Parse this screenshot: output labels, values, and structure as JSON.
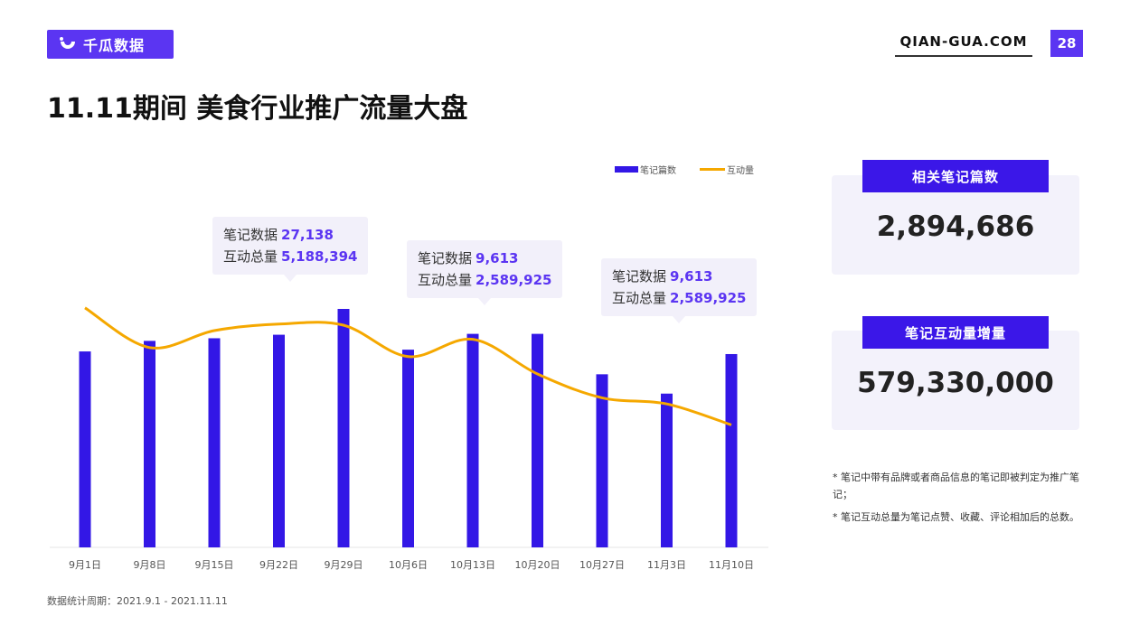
{
  "brand": {
    "name": "千瓜数据",
    "site": "QIAN-GUA.COM",
    "page": "28"
  },
  "title": "11.11期间 美食行业推广流量大盘",
  "colors": {
    "accent": "#5b35f2",
    "bar": "#3317e6",
    "line": "#f5a800"
  },
  "chart_data": {
    "type": "bar",
    "categories": [
      "9月1日",
      "9月8日",
      "9月15日",
      "9月22日",
      "9月29日",
      "10月6日",
      "10月13日",
      "10月20日",
      "10月27日",
      "11月3日",
      "11月10日"
    ],
    "series": [
      {
        "name": "笔记篇数",
        "type": "bar",
        "values": [
          22300,
          23500,
          23800,
          24200,
          27138,
          22500,
          24300,
          24300,
          19700,
          17500,
          22000
        ]
      },
      {
        "name": "互动量",
        "type": "line",
        "values": [
          6.63,
          5.53,
          6.0,
          6.18,
          6.15,
          5.28,
          5.76,
          4.8,
          4.14,
          3.97,
          3.39
        ]
      }
    ],
    "legend_position": "top",
    "grid": false
  },
  "tooltips": [
    {
      "notes_label": "笔记数据",
      "notes_value": "27,138",
      "inter_label": "互动总量",
      "inter_value": "5,188,394"
    },
    {
      "notes_label": "笔记数据",
      "notes_value": "9,613",
      "inter_label": "互动总量",
      "inter_value": "2,589,925"
    },
    {
      "notes_label": "笔记数据",
      "notes_value": "9,613",
      "inter_label": "互动总量",
      "inter_value": "2,589,925"
    }
  ],
  "cards": [
    {
      "label": "相关笔记篇数",
      "value": "2,894,686"
    },
    {
      "label": "笔记互动量增量",
      "value": "579,330,000"
    }
  ],
  "notes": [
    "* 笔记中带有品牌或者商品信息的笔记即被判定为推广笔记；",
    "* 笔记互动总量为笔记点赞、收藏、评论相加后的总数。"
  ],
  "footer": "数据统计周期：2021.9.1 - 2021.11.11"
}
